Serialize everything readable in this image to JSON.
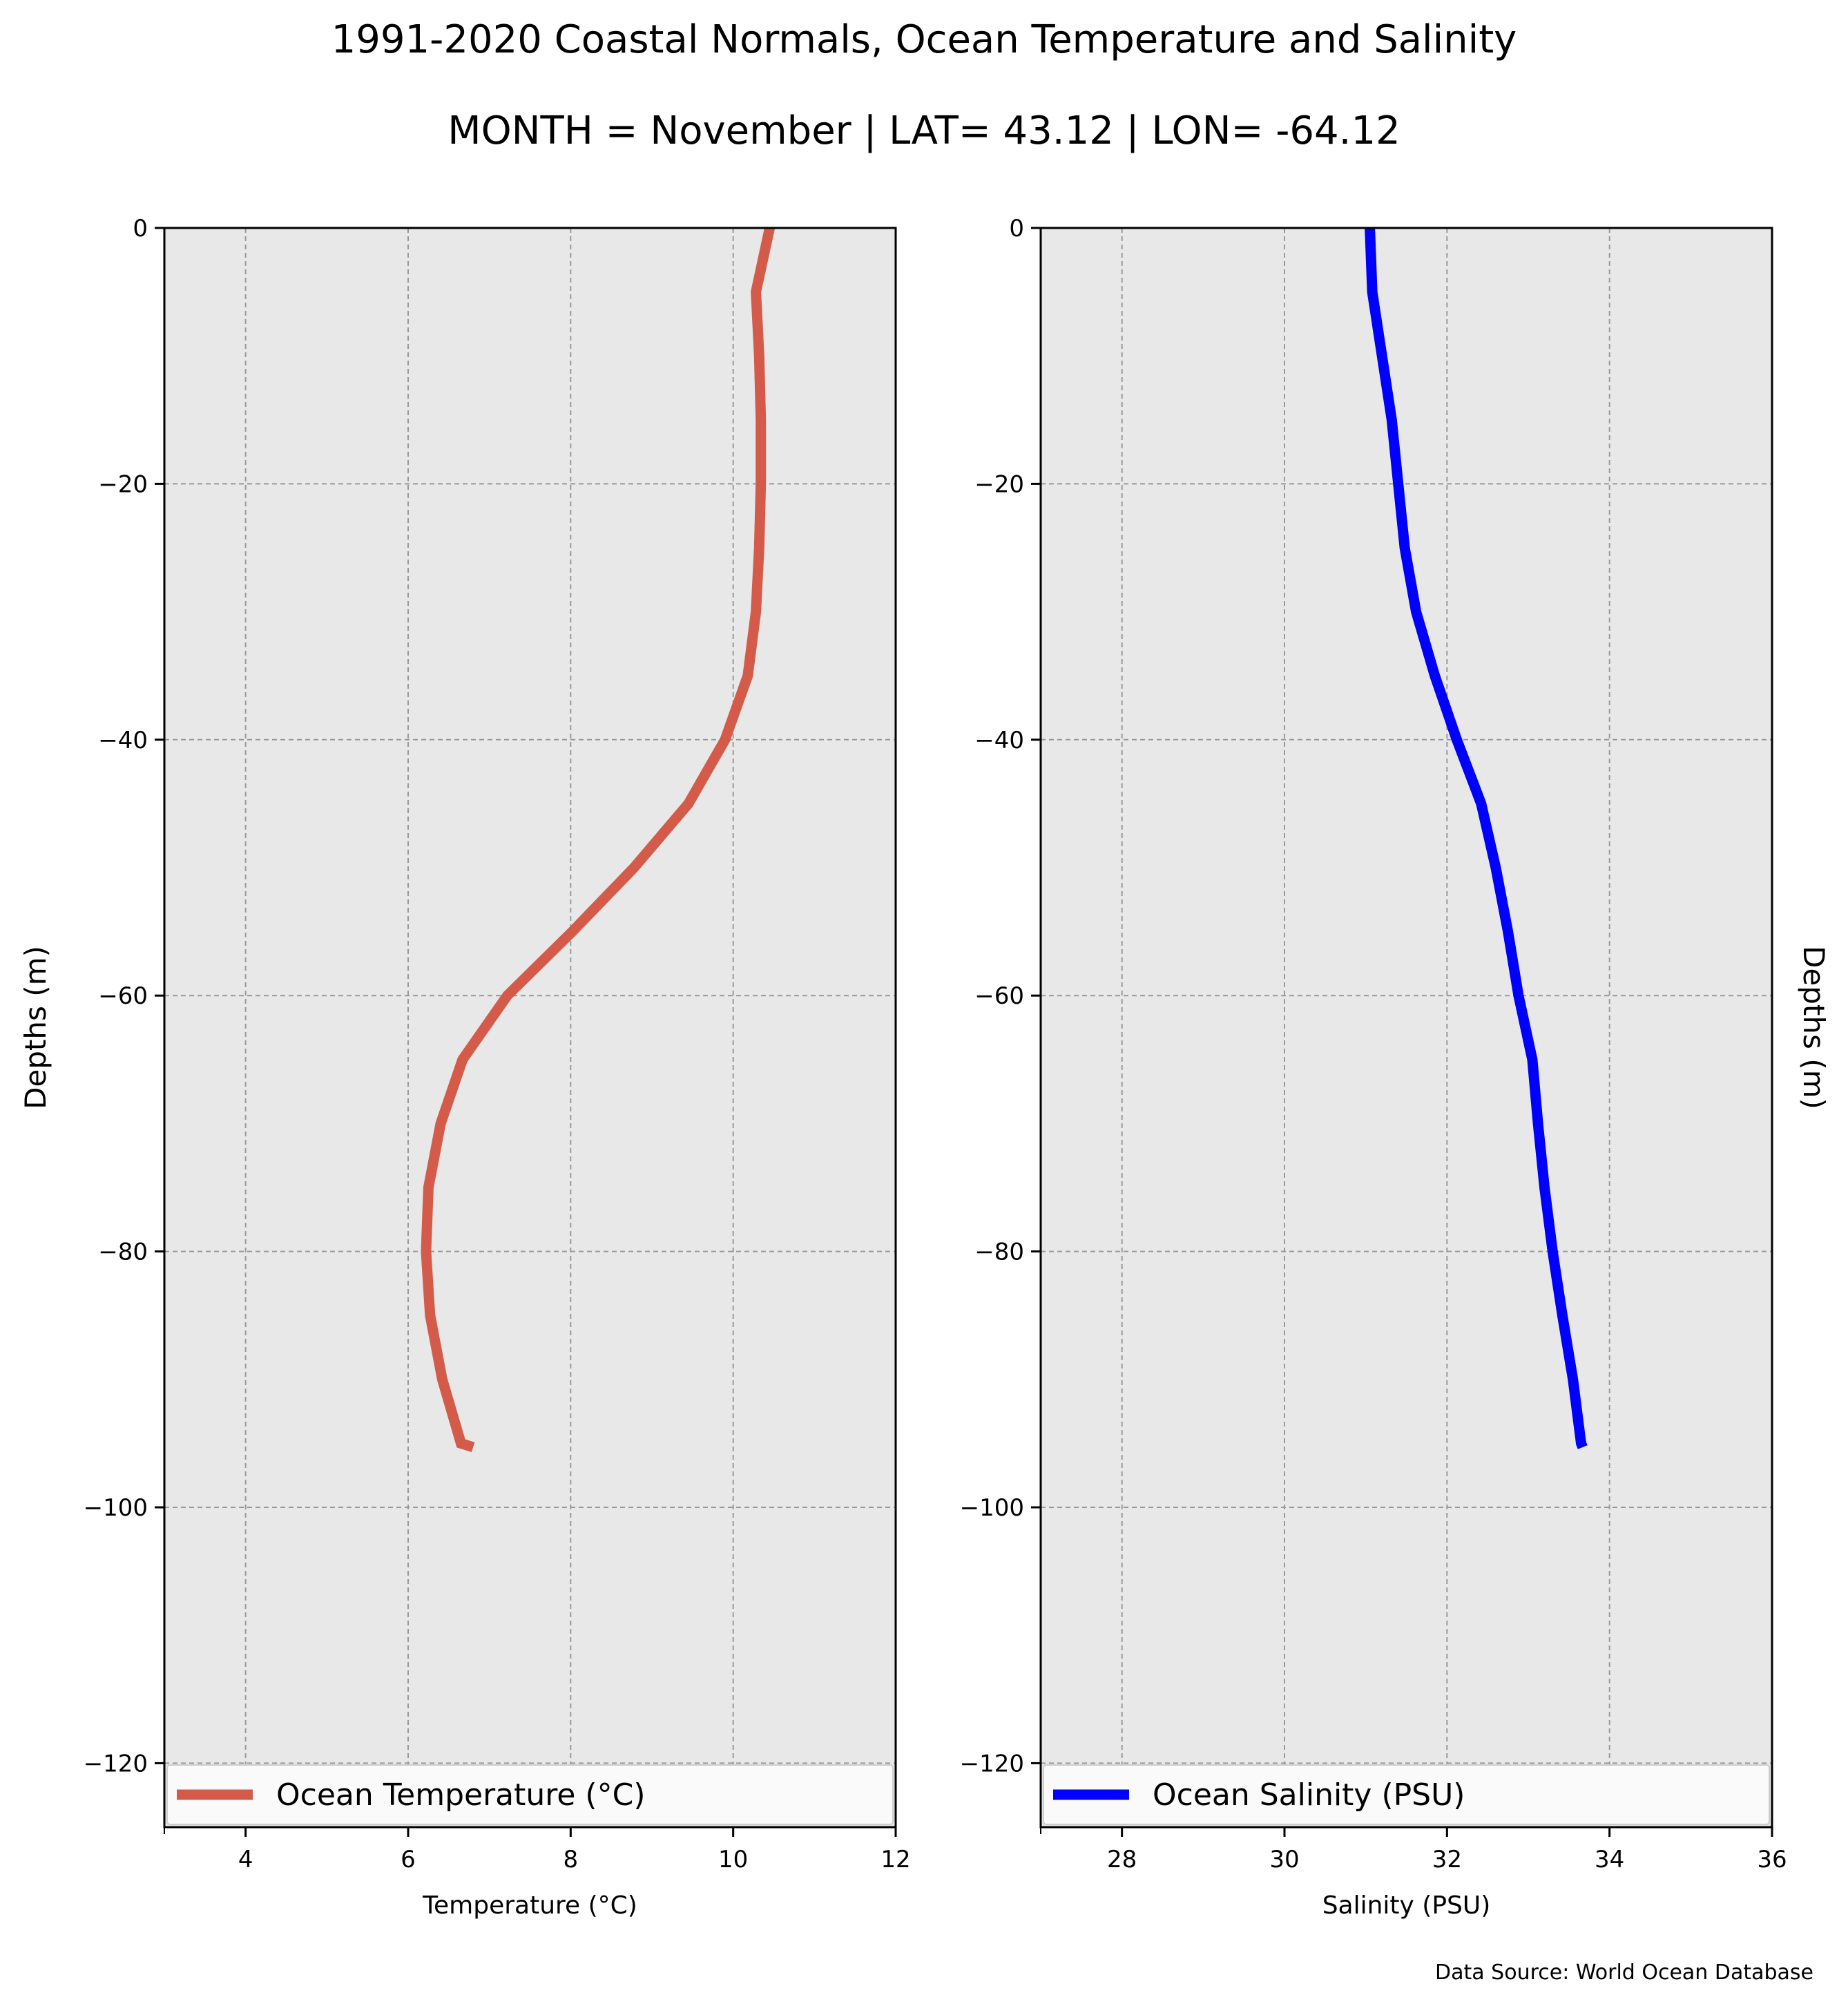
{
  "title": "1991-2020 Coastal Normals, Ocean Temperature and Salinity",
  "subtitle": "MONTH = November | LAT= 43.12 | LON= -64.12",
  "source": "Data Source: World Ocean Database",
  "chart_data": [
    {
      "type": "line",
      "xlabel": "Temperature (°C)",
      "ylabel": "Depths (m)",
      "xlim": [
        3,
        12
      ],
      "ylim": [
        -125,
        0
      ],
      "xticks": [
        4,
        6,
        8,
        10,
        12
      ],
      "xtick_labels": [
        "4",
        "6",
        "8",
        "10",
        "12"
      ],
      "yticks": [
        0,
        -20,
        -40,
        -60,
        -80,
        -100,
        -120
      ],
      "ytick_labels": [
        "0",
        "−20",
        "−40",
        "−60",
        "−80",
        "−100",
        "−120"
      ],
      "grid": true,
      "legend_position": "bottom",
      "series": [
        {
          "name": "Ocean Temperature (°C)",
          "color": "#d45b4a",
          "x": [
            10.45,
            10.28,
            10.32,
            10.34,
            10.34,
            10.32,
            10.28,
            10.18,
            9.9,
            9.45,
            8.78,
            8.02,
            7.22,
            6.67,
            6.4,
            6.25,
            6.22,
            6.27,
            6.42,
            6.65,
            6.8
          ],
          "y": [
            0,
            -5,
            -10,
            -15,
            -20,
            -25,
            -30,
            -35,
            -40,
            -45,
            -50,
            -55,
            -60,
            -65,
            -70,
            -75,
            -80,
            -85,
            -90,
            -95,
            -95.3
          ]
        }
      ]
    },
    {
      "type": "line",
      "xlabel": "Salinity (PSU)",
      "ylabel": "Depths (m)",
      "xlim": [
        27,
        36
      ],
      "ylim": [
        -125,
        0
      ],
      "xticks": [
        28,
        30,
        32,
        34,
        36
      ],
      "xtick_labels": [
        "28",
        "30",
        "32",
        "34",
        "36"
      ],
      "yticks": [
        0,
        -20,
        -40,
        -60,
        -80,
        -100,
        -120
      ],
      "ytick_labels": [
        "0",
        "−20",
        "−40",
        "−60",
        "−80",
        "−100",
        "−120"
      ],
      "grid": true,
      "legend_position": "bottom",
      "series": [
        {
          "name": "Ocean Salinity (PSU)",
          "color": "#0000ff",
          "x": [
            31.05,
            31.08,
            31.2,
            31.32,
            31.4,
            31.48,
            31.62,
            31.85,
            32.12,
            32.42,
            32.6,
            32.75,
            32.88,
            33.05,
            33.12,
            33.2,
            33.3,
            33.42,
            33.55,
            33.65,
            33.67
          ],
          "y": [
            0,
            -5,
            -10,
            -15,
            -20,
            -25,
            -30,
            -35,
            -40,
            -45,
            -50,
            -55,
            -60,
            -65,
            -70,
            -75,
            -80,
            -85,
            -90,
            -95,
            -95.3
          ]
        }
      ]
    }
  ]
}
